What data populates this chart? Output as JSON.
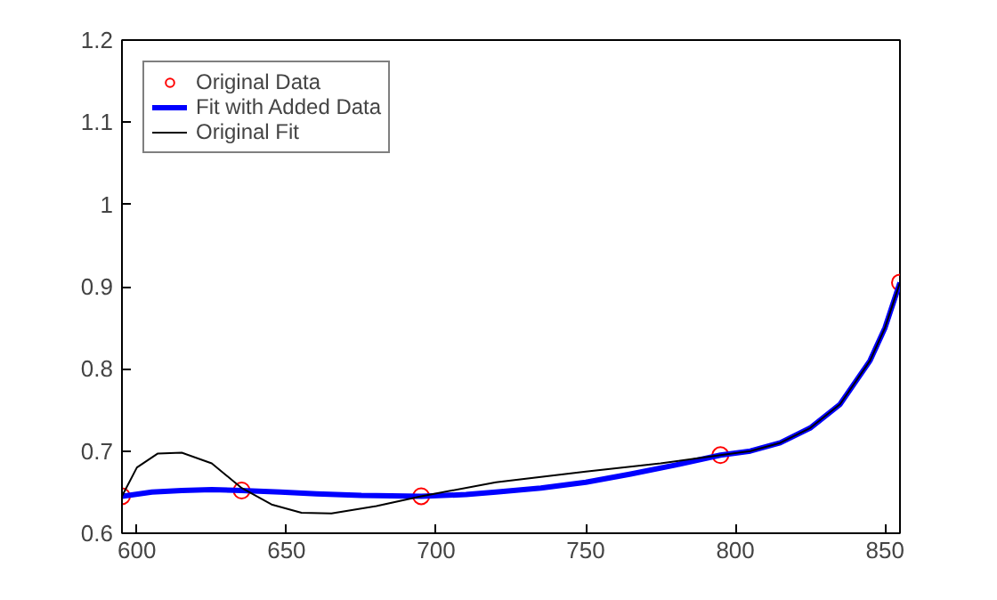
{
  "chart_data": {
    "type": "line",
    "xlim": [
      595,
      855
    ],
    "ylim": [
      0.6,
      1.2
    ],
    "xticks": [
      600,
      650,
      700,
      750,
      800,
      850
    ],
    "yticks": [
      0.6,
      0.7,
      0.8,
      0.9,
      1,
      1.1,
      1.2
    ],
    "grid": false,
    "legend": "top left",
    "series": [
      {
        "name": "Original Data",
        "type": "scatter",
        "marker": "circle",
        "color": "#ff0000",
        "x": [
          595,
          635,
          695,
          795,
          855
        ],
        "values": [
          0.645,
          0.652,
          0.645,
          0.695,
          0.905
        ]
      },
      {
        "name": "Fit with Added Data",
        "color": "#0000ff",
        "x": [
          595,
          605,
          615,
          625,
          635,
          648,
          660,
          675,
          695,
          710,
          720,
          735,
          750,
          765,
          780,
          795,
          805,
          815,
          825,
          835,
          845,
          850,
          855
        ],
        "values": [
          0.645,
          0.65,
          0.652,
          0.653,
          0.652,
          0.65,
          0.648,
          0.646,
          0.645,
          0.647,
          0.65,
          0.655,
          0.662,
          0.672,
          0.683,
          0.695,
          0.7,
          0.71,
          0.728,
          0.757,
          0.81,
          0.85,
          0.905
        ]
      },
      {
        "name": "Original Fit",
        "color": "#000000",
        "x": [
          595,
          600,
          607,
          615,
          625,
          635,
          645,
          655,
          665,
          680,
          695,
          720,
          750,
          775,
          795,
          805,
          815,
          825,
          835,
          845,
          850,
          855
        ],
        "values": [
          0.645,
          0.68,
          0.697,
          0.698,
          0.685,
          0.655,
          0.635,
          0.625,
          0.624,
          0.633,
          0.645,
          0.662,
          0.675,
          0.685,
          0.695,
          0.7,
          0.71,
          0.728,
          0.757,
          0.81,
          0.85,
          0.905
        ]
      }
    ]
  }
}
